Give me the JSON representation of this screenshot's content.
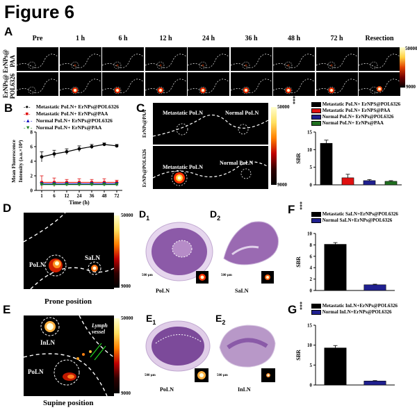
{
  "figure_title": "Figure 6",
  "panels": {
    "A": {
      "letter": "A",
      "timepoints": [
        "Pre",
        "1 h",
        "6 h",
        "12 h",
        "24 h",
        "36 h",
        "48 h",
        "72 h",
        "Resection"
      ],
      "row1_label_a": "ErNPs@",
      "row1_label_b": "PAA",
      "row2_label_a": "ErNPs@",
      "row2_label_b": "POL6326",
      "cbar_max": "50000",
      "cbar_min": "9000"
    },
    "B": {
      "letter": "B",
      "ylabel_a": "Mean Fluorescence",
      "ylabel_b": "Intensity (a.u.×10⁴)",
      "xlabel": "Time (h)"
    },
    "C": {
      "letter": "C",
      "row1_label": "ErNPs@PAA",
      "row2_label": "ErNPs@POL6326",
      "img1_met": "Metastatic PoLN",
      "img1_norm": "Normal PoLN",
      "img2_met": "Metastatic PoLN",
      "img2_norm": "Normal PoLN",
      "cbar_max": "50000",
      "cbar_min": "9000",
      "sig": "***"
    },
    "D": {
      "letter": "D",
      "label_po": "PoLN",
      "label_sa": "SaLN",
      "caption": "Prone position",
      "cbar_max": "50000",
      "cbar_min": "9000",
      "d1": "D",
      "d1_sub": "1",
      "d2": "D",
      "d2_sub": "2",
      "scale1": "500 μm",
      "scale2": "500 μm",
      "cap1": "PoLN",
      "cap2": "SaLN"
    },
    "E": {
      "letter": "E",
      "label_in": "InLN",
      "label_po": "PoLN",
      "lymph_a": "Lymph",
      "lymph_b": "vessel",
      "caption": "Supine position",
      "cbar_max": "50000",
      "cbar_min": "9000",
      "e1": "E",
      "e1_sub": "1",
      "e2": "E",
      "e2_sub": "2",
      "scale1": "500 μm",
      "scale2": "500 μm",
      "cap1": "PoLN",
      "cap2": "InLN"
    },
    "F": {
      "letter": "F",
      "sig": "***",
      "ylabel": "SBR"
    },
    "G": {
      "letter": "G",
      "sig": "***",
      "ylabel": "SBR"
    }
  },
  "chart_data": [
    {
      "id": "B",
      "type": "line",
      "title": "",
      "xlabel": "Time (h)",
      "ylabel": "Mean Fluorescence Intensity (a.u.×10⁴)",
      "x": [
        1,
        6,
        12,
        24,
        36,
        48,
        72
      ],
      "xticks": [
        "1",
        "6",
        "12",
        "24",
        "36",
        "48",
        "72"
      ],
      "ylim": [
        0,
        8
      ],
      "yticks": [
        "0",
        "2",
        "4",
        "6",
        "8"
      ],
      "series": [
        {
          "name": "Metastatic PoLN+ ErNPs@POL6326",
          "color": "#000000",
          "marker": "circle",
          "values": [
            4.6,
            5.0,
            5.3,
            5.7,
            6.0,
            6.3,
            6.1
          ],
          "err": [
            0.7,
            0.5,
            0.4,
            0.4,
            0.3,
            0.2,
            0.2
          ]
        },
        {
          "name": "Metastatic PoLN+ ErNPs@PAA",
          "color": "#e01010",
          "marker": "square",
          "values": [
            1.1,
            1.1,
            1.1,
            1.1,
            1.1,
            1.1,
            1.1
          ],
          "err": [
            0.9,
            0.6,
            0.4,
            0.5,
            0.4,
            0.5,
            0.3
          ]
        },
        {
          "name": "Normal PoLN+ ErNPs@POL6326",
          "color": "#1010c0",
          "marker": "triangle",
          "values": [
            0.9,
            0.9,
            0.9,
            0.9,
            0.9,
            0.9,
            0.9
          ],
          "err": [
            0.2,
            0.2,
            0.2,
            0.2,
            0.2,
            0.2,
            0.2
          ]
        },
        {
          "name": "Normal PoLN+ ErNPs@PAA",
          "color": "#208020",
          "marker": "triangle-down",
          "values": [
            0.8,
            0.8,
            0.8,
            0.8,
            0.8,
            0.8,
            0.8
          ],
          "err": [
            0.2,
            0.2,
            0.2,
            0.2,
            0.2,
            0.2,
            0.2
          ]
        }
      ]
    },
    {
      "id": "C",
      "type": "bar",
      "title": "",
      "ylabel": "SBR",
      "ylim": [
        0,
        15
      ],
      "yticks": [
        "0",
        "5",
        "10",
        "15"
      ],
      "categories": [
        "Metastatic PoLN+ ErNPS@POL6326",
        "Metastatic PoLN+ ErNPS@PAA",
        "Normal PoLN+ ErNPs@POL6326",
        "Normal PoLN+ ErNPs@PAA"
      ],
      "values": [
        11.8,
        2.0,
        1.2,
        1.0
      ],
      "err": [
        0.9,
        1.0,
        0.3,
        0.2
      ],
      "colors": [
        "#000000",
        "#e01010",
        "#202090",
        "#207020"
      ]
    },
    {
      "id": "F",
      "type": "bar",
      "title": "",
      "ylabel": "SBR",
      "ylim": [
        0,
        10
      ],
      "yticks": [
        "0",
        "2",
        "4",
        "6",
        "8",
        "10"
      ],
      "categories": [
        "Metastatic SaLN+ErNPs@POL6326",
        "Normal SaLN+ErNPs@POL6326"
      ],
      "values": [
        8.1,
        1.0
      ],
      "err": [
        0.3,
        0.1
      ],
      "colors": [
        "#000000",
        "#202090"
      ]
    },
    {
      "id": "G",
      "type": "bar",
      "title": "",
      "ylabel": "SBR",
      "ylim": [
        0,
        15
      ],
      "yticks": [
        "0",
        "5",
        "10",
        "15"
      ],
      "categories": [
        "Metastatic InLN+ErNPs@POL6326",
        "Normal InLN+ErNPs@POL6326"
      ],
      "values": [
        9.3,
        1.0
      ],
      "err": [
        0.6,
        0.1
      ],
      "colors": [
        "#000000",
        "#202090"
      ]
    }
  ]
}
